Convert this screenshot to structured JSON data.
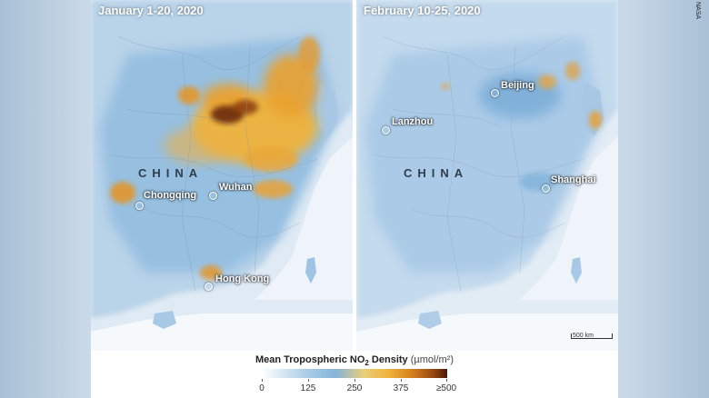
{
  "credit": "NASA",
  "panels": {
    "left": {
      "title": "January 1-20, 2020",
      "country_label": "CHINA",
      "cities": {
        "chongqing": "Chongqing",
        "wuhan": "Wuhan",
        "hong_kong": "Hong Kong"
      }
    },
    "right": {
      "title": "February 10-25, 2020",
      "country_label": "CHINA",
      "cities": {
        "beijing": "Beijing",
        "lanzhou": "Lanzhou",
        "shanghai": "Shanghai"
      },
      "scale_label": "500 km"
    }
  },
  "legend": {
    "title_main": "Mean Tropospheric NO",
    "title_sub": "2",
    "title_rest": " Density ",
    "unit": "(µmol/m²)",
    "ticks": [
      "0",
      "125",
      "250",
      "375",
      "≥500"
    ]
  },
  "colors": {
    "water": "#ffffff",
    "land_low": "#cfe0ee",
    "land_mid": "#7fb0d8",
    "no2_high": "#f0a536",
    "no2_peak": "#5a1c08"
  }
}
